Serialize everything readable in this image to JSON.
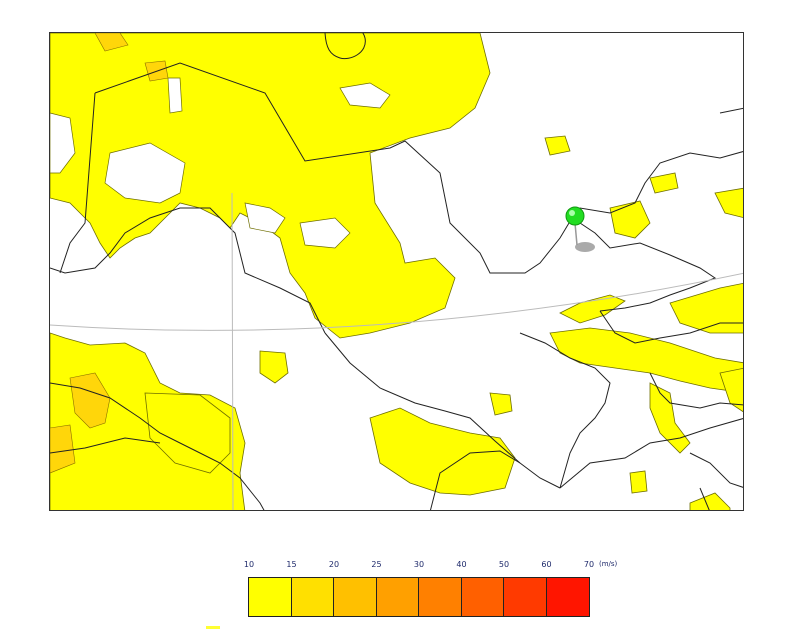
{
  "map": {
    "field_color": "#ffff00",
    "field_outline": "#6e6e00",
    "stronger_color": "#ffd60a",
    "border_color": "#222222",
    "graticule_color": "#bbbbbb",
    "marker": {
      "pin_color": "#22dd22",
      "shadow_color": "#aaaaaa"
    }
  },
  "legend": {
    "ticks": [
      "10",
      "15",
      "20",
      "25",
      "30",
      "40",
      "50",
      "60",
      "70"
    ],
    "unit": "(m/s)",
    "colors": [
      "#ffff00",
      "#ffe000",
      "#ffc000",
      "#ffa000",
      "#ff8000",
      "#ff6000",
      "#ff3a00",
      "#ff1500"
    ]
  }
}
